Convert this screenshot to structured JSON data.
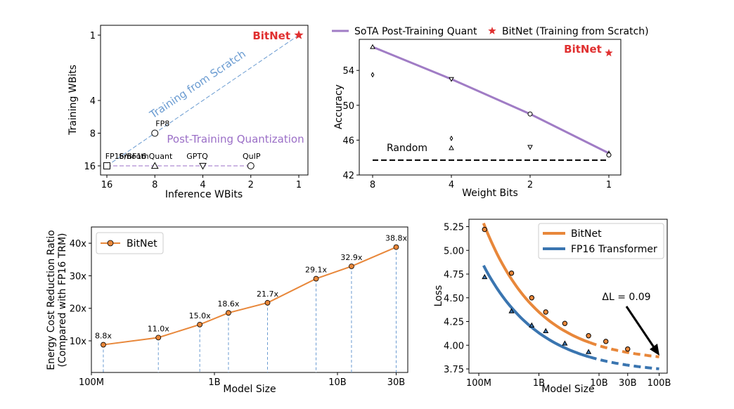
{
  "chart_data": [
    {
      "id": "panel-a",
      "type": "scatter",
      "xlabel": "Inference WBits",
      "ylabel": "Training WBits",
      "x_scale": "log2-reversed",
      "x_ticks": [
        16,
        8,
        4,
        2,
        1
      ],
      "y_ticks": [
        1,
        4,
        8,
        16
      ],
      "series": [
        {
          "name": "BitNet",
          "color": "#e03030",
          "points": [
            {
              "x": 1,
              "y": 1,
              "marker": "star"
            }
          ]
        }
      ],
      "points": [
        {
          "label": "FP16/BF16",
          "x": 16,
          "y": 16,
          "marker": "square"
        },
        {
          "label": "FP8",
          "x": 8,
          "y": 8,
          "marker": "circle"
        },
        {
          "label": "SmoothQuant",
          "x": 8,
          "y": 16,
          "marker": "triangle-up"
        },
        {
          "label": "GPTQ",
          "x": 4,
          "y": 16,
          "marker": "triangle-down"
        },
        {
          "label": "QuIP",
          "x": 2,
          "y": 16,
          "marker": "circle"
        }
      ],
      "annotations": [
        {
          "text": "Training from Scratch",
          "color": "#6a9bd1"
        },
        {
          "text": "Post-Training Quantization",
          "color": "#9b6fc7"
        }
      ],
      "colors": {
        "scratch_line": "#6a9bd1",
        "ptq_line": "#9b6fc7",
        "bitnet": "#e03030"
      }
    },
    {
      "id": "panel-b",
      "type": "line",
      "xlabel": "Weight Bits",
      "ylabel": "Accuracy",
      "x_ticks": [
        8,
        4,
        2,
        1
      ],
      "y_ticks": [
        42,
        46,
        50,
        54
      ],
      "ylim": [
        42,
        57.5
      ],
      "legend_placement": "top",
      "legend": [
        {
          "label": "SoTA Post-Training Quant",
          "color": "#a07cc5",
          "type": "line"
        },
        {
          "label": "BitNet (Training from Scratch)",
          "color": "#e03030",
          "type": "star"
        }
      ],
      "series": [
        {
          "name": "SoTA Post-Training Quant",
          "color": "#a07cc5",
          "points": [
            {
              "x": 8,
              "y": 56.7,
              "marker": "triangle-up"
            },
            {
              "x": 4,
              "y": 53.0,
              "marker": "triangle-down"
            },
            {
              "x": 2,
              "y": 49.0,
              "marker": "circle"
            },
            {
              "x": 1,
              "y": 44.5,
              "marker": "triangle-up"
            }
          ]
        }
      ],
      "extra_points": [
        {
          "x": 8,
          "y": 53.5,
          "marker": "diamond"
        },
        {
          "x": 4,
          "y": 46.2,
          "marker": "diamond"
        },
        {
          "x": 4,
          "y": 45.1,
          "marker": "triangle-up"
        },
        {
          "x": 2,
          "y": 45.2,
          "marker": "triangle-down"
        },
        {
          "x": 1,
          "y": 44.3,
          "marker": "circle"
        }
      ],
      "bitnet": {
        "label": "BitNet",
        "x": 1,
        "y": 56.0,
        "color": "#e03030"
      },
      "random": {
        "label": "Random",
        "y": 43.7
      }
    },
    {
      "id": "panel-c",
      "type": "line",
      "xlabel": "Model Size",
      "ylabel": "Energy Cost Reduction Ratio",
      "ylabel2": "(Compared with FP16 TRM)",
      "x_scale": "log",
      "x_ticks": [
        "100M",
        "1B",
        "10B",
        "30B"
      ],
      "y_ticks": [
        "10x",
        "20x",
        "30x",
        "40x"
      ],
      "legend_placement": "top-left",
      "series": [
        {
          "name": "BitNet",
          "color": "#e8873a",
          "x": [
            125,
            350,
            760,
            1300,
            2700,
            6700,
            13000,
            30000
          ],
          "values": [
            8.8,
            11.0,
            15.0,
            18.6,
            21.7,
            29.1,
            32.9,
            38.8
          ],
          "labels": [
            "8.8x",
            "11.0x",
            "15.0x",
            "18.6x",
            "21.7x",
            "29.1x",
            "32.9x",
            "38.8x"
          ]
        }
      ]
    },
    {
      "id": "panel-d",
      "type": "line",
      "xlabel": "Model Size",
      "ylabel": "Loss",
      "x_scale": "log",
      "x_ticks": [
        "100M",
        "1B",
        "10B",
        "30B",
        "100B"
      ],
      "y_ticks": [
        "3.75",
        "4.00",
        "4.25",
        "4.50",
        "4.75",
        "5.00",
        "5.25"
      ],
      "legend_placement": "top-right",
      "series": [
        {
          "name": "BitNet",
          "color": "#e8873a",
          "marker": "circle",
          "x": [
            125,
            350,
            760,
            1300,
            2700,
            6700,
            13000,
            30000
          ],
          "values": [
            5.22,
            4.76,
            4.5,
            4.35,
            4.23,
            4.1,
            4.04,
            3.96
          ]
        },
        {
          "name": "FP16 Transformer",
          "color": "#3a75b0",
          "marker": "triangle-up",
          "x": [
            125,
            350,
            760,
            1300,
            2700,
            6700
          ],
          "values": [
            4.72,
            4.36,
            4.21,
            4.15,
            4.02,
            3.93
          ]
        }
      ],
      "annotation": {
        "text": "ΔL = 0.09"
      }
    }
  ]
}
